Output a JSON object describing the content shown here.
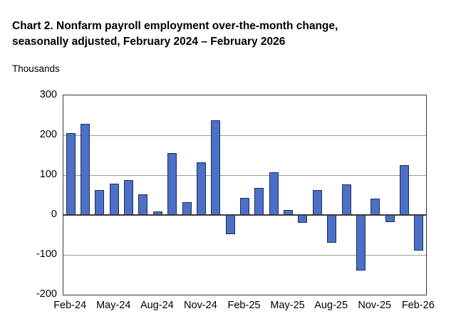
{
  "header": {
    "title_line1": "Chart 2. Nonfarm payroll employment over-the-month change,",
    "title_line2": "seasonally adjusted, February 2024 – February 2026",
    "units_label": "Thousands"
  },
  "colors": {
    "background": "#ffffff",
    "bar_fill": "#4a70c8",
    "bar_border": "#1f3050",
    "gridline": "#9b9b9b",
    "axis_frame": "#3a3a3a",
    "text": "#000000"
  },
  "chart_data": {
    "type": "bar",
    "title": "Chart 2. Nonfarm payroll employment over-the-month change, seasonally adjusted, February 2024 – February 2026",
    "xlabel": "",
    "ylabel": "Thousands",
    "categories": [
      "Feb-24",
      "Mar-24",
      "Apr-24",
      "May-24",
      "Jun-24",
      "Jul-24",
      "Aug-24",
      "Sep-24",
      "Oct-24",
      "Nov-24",
      "Dec-24",
      "Jan-25",
      "Feb-25",
      "Mar-25",
      "Apr-25",
      "May-25",
      "Jun-25",
      "Jul-25",
      "Aug-25",
      "Sep-25",
      "Oct-25",
      "Nov-25",
      "Dec-25",
      "Jan-26",
      "Feb-26"
    ],
    "values": [
      205,
      228,
      63,
      78,
      87,
      52,
      9,
      155,
      32,
      133,
      237,
      -48,
      43,
      67,
      107,
      13,
      -20,
      63,
      -70,
      76,
      -140,
      41,
      -18,
      125,
      -90
    ],
    "ylim": [
      -200,
      300
    ],
    "yticks": [
      300,
      200,
      100,
      0,
      -100,
      -200
    ],
    "xtick_labels": [
      "Feb-24",
      "May-24",
      "Aug-24",
      "Nov-24",
      "Feb-25",
      "May-25",
      "Aug-25",
      "Nov-25",
      "Feb-26"
    ],
    "xtick_every": 3,
    "grid": true,
    "legend": false
  }
}
